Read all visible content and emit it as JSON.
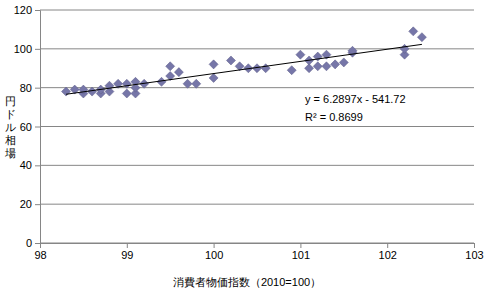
{
  "chart_data": {
    "type": "scatter",
    "x_label": "消費者物価指数（2010=100）",
    "y_label": "円ドル相場",
    "annotations": [
      "y = 6.2897x - 541.72",
      "R² = 0.8699"
    ],
    "series": [
      {
        "type": "scatter",
        "marker": "diamond",
        "color": "#7676a8",
        "x": [
          98.3,
          98.4,
          98.5,
          98.5,
          98.6,
          98.7,
          98.7,
          98.8,
          98.8,
          98.9,
          99.0,
          99.0,
          99.1,
          99.1,
          99.1,
          99.2,
          99.4,
          99.5,
          99.5,
          99.6,
          99.7,
          99.8,
          100.0,
          100.0,
          100.2,
          100.3,
          100.4,
          100.5,
          100.6,
          100.9,
          101.0,
          101.1,
          101.1,
          101.2,
          101.2,
          101.3,
          101.3,
          101.4,
          101.5,
          101.6,
          101.6,
          102.2,
          102.2,
          102.3,
          102.4
        ],
        "values": [
          78,
          79,
          77,
          79,
          78,
          77,
          79,
          78,
          81,
          82,
          82,
          77,
          83,
          77,
          80,
          82,
          83,
          86,
          91,
          88,
          82,
          82,
          85,
          92,
          94,
          91,
          90,
          90,
          90,
          89,
          97,
          90,
          94,
          91,
          96,
          91,
          97,
          92,
          93,
          98,
          99,
          97,
          100,
          109,
          106
        ]
      },
      {
        "type": "line",
        "line_style": "solid",
        "color": "#000000",
        "x": [
          98.3,
          102.4
        ],
        "values": [
          76.6,
          102.3
        ]
      }
    ],
    "xlim": [
      98,
      103
    ],
    "xticks": [
      98,
      99,
      100,
      101,
      102,
      103
    ],
    "ylim": [
      0,
      120
    ],
    "yticks": [
      0,
      20,
      40,
      60,
      80,
      100,
      120
    ],
    "grid": true
  }
}
